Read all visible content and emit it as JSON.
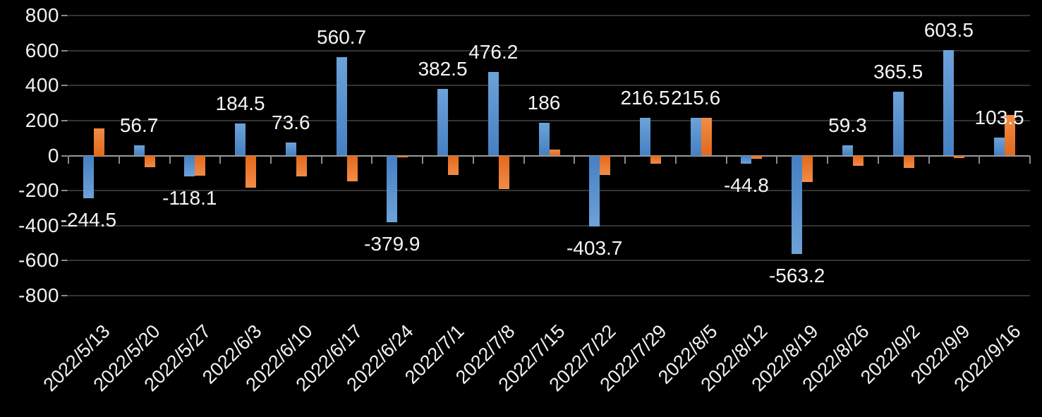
{
  "chart_data": {
    "type": "bar",
    "title": "",
    "xlabel": "",
    "ylabel": "",
    "categories": [
      "2022/5/13",
      "2022/5/20",
      "2022/5/27",
      "2022/6/3",
      "2022/6/10",
      "2022/6/17",
      "2022/6/24",
      "2022/7/1",
      "2022/7/8",
      "2022/7/15",
      "2022/7/22",
      "2022/7/29",
      "2022/8/5",
      "2022/8/12",
      "2022/8/19",
      "2022/8/26",
      "2022/9/2",
      "2022/9/9",
      "2022/9/16"
    ],
    "series": [
      {
        "name": "series-blue",
        "values": [
          -244.5,
          56.7,
          -118.1,
          184.5,
          73.6,
          560.7,
          -379.9,
          382.5,
          476.2,
          186,
          -403.7,
          216.5,
          215.6,
          -44.8,
          -563.2,
          59.3,
          365.5,
          603.5,
          103.5
        ],
        "data_labels": [
          "-244.5",
          "56.7",
          "-118.1",
          "184.5",
          "73.6",
          "560.7",
          "-379.9",
          "382.5",
          "476.2",
          "186",
          "-403.7",
          "216.5",
          "215.6",
          "-44.8",
          "-563.2",
          "59.3",
          "365.5",
          "603.5",
          "103.5"
        ],
        "labels_shown": true,
        "color_light": "#6da2d9",
        "color_dark": "#4580c2"
      },
      {
        "name": "series-orange",
        "values": [
          155,
          -65,
          -115,
          -185,
          -120,
          -145,
          -10,
          -110,
          -190,
          33,
          -110,
          -45,
          215,
          -18,
          -150,
          -60,
          -70,
          -15,
          230
        ],
        "data_labels": [],
        "labels_shown": false,
        "color_light": "#f18c48",
        "color_dark": "#e2691b"
      }
    ],
    "ylim": [
      -800,
      800
    ],
    "ytick_interval": 200,
    "ytick_labels": [
      "800",
      "600",
      "400",
      "200",
      "0",
      "-200",
      "-400",
      "-600",
      "-800"
    ],
    "grid": true,
    "legend": "none",
    "colors": {
      "background": "#000000",
      "gridline": "#333333",
      "axis_line": "#9a9a9a",
      "tick_mark": "#8a8a8a",
      "text": "#f2f2f2"
    }
  }
}
